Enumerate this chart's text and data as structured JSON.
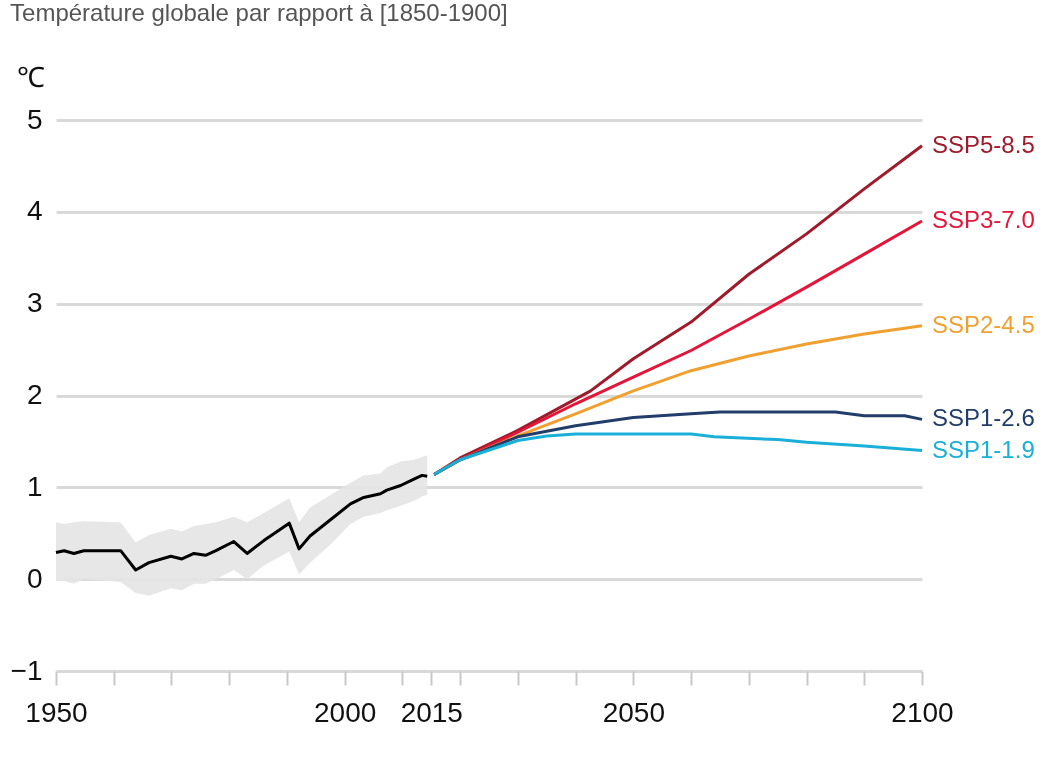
{
  "chart_data": {
    "type": "line",
    "title": "Température globale par rapport à [1850-1900]",
    "ylabel": "℃",
    "xlim": [
      1950,
      2100
    ],
    "ylim": [
      -1,
      5
    ],
    "yticks": [
      -1,
      0,
      1,
      2,
      3,
      4,
      5
    ],
    "xticks": [
      1950,
      {
        "value": 1960,
        "label": null
      },
      {
        "value": 1970,
        "label": null
      },
      {
        "value": 1980,
        "label": null
      },
      {
        "value": 1990,
        "label": null
      },
      2000,
      {
        "value": 2010,
        "label": null
      },
      2015,
      {
        "value": 2020,
        "label": null
      },
      {
        "value": 2030,
        "label": null
      },
      {
        "value": 2040,
        "label": null
      },
      2050,
      {
        "value": 2060,
        "label": null
      },
      {
        "value": 2070,
        "label": null
      },
      {
        "value": 2080,
        "label": null
      },
      {
        "value": 2090,
        "label": null
      },
      2100
    ],
    "grid": "y",
    "legend": false,
    "line_style": "solid",
    "marker": "none",
    "series": [
      {
        "color": "#000000",
        "x": [
          1950,
          1951.4,
          1953.1,
          1954.8,
          1961.2,
          1963.8,
          1966.1,
          1969.9,
          1971.8,
          1973.9,
          1975.9,
          1977.7,
          1980.8,
          1983.1,
          1986,
          1990.4,
          1992.1,
          1994,
          1997.6,
          2001,
          2003.3,
          2006.2,
          2007.3,
          2009.7,
          2012,
          2013.4,
          2014.3
        ],
        "values": [
          0.29,
          0.31,
          0.28,
          0.31,
          0.31,
          0.1,
          0.18,
          0.25,
          0.22,
          0.28,
          0.26,
          0.31,
          0.41,
          0.28,
          0.42,
          0.61,
          0.33,
          0.47,
          0.65,
          0.82,
          0.89,
          0.93,
          0.97,
          1.02,
          1.09,
          1.13,
          1.12
        ],
        "lower": [
          -0.02,
          -0.02,
          -0.05,
          0.0,
          -0.03,
          -0.15,
          -0.18,
          -0.1,
          -0.12,
          -0.05,
          -0.05,
          0.0,
          0.1,
          0.0,
          0.15,
          0.3,
          0.05,
          0.18,
          0.38,
          0.6,
          0.68,
          0.72,
          0.75,
          0.8,
          0.85,
          0.9,
          0.92
        ],
        "upper": [
          0.62,
          0.6,
          0.62,
          0.63,
          0.62,
          0.4,
          0.48,
          0.55,
          0.52,
          0.58,
          0.6,
          0.62,
          0.68,
          0.62,
          0.72,
          0.88,
          0.62,
          0.78,
          0.92,
          1.05,
          1.13,
          1.15,
          1.22,
          1.28,
          1.3,
          1.33,
          1.35
        ]
      },
      {
        "name": "SSP5-8.5",
        "color": "#9e1b2b",
        "x": [
          2015.5,
          2020,
          2030,
          2042.6,
          2050,
          2060,
          2070,
          2080,
          2090,
          2100
        ],
        "values": [
          1.14,
          1.32,
          1.62,
          2.05,
          2.4,
          2.8,
          3.32,
          3.76,
          4.25,
          4.72
        ]
      },
      {
        "name": "SSP3-7.0",
        "color": "#e3163a",
        "x": [
          2015.5,
          2020,
          2030,
          2040,
          2050,
          2060,
          2070,
          2080,
          2090,
          2100
        ],
        "values": [
          1.14,
          1.3,
          1.6,
          1.91,
          2.2,
          2.49,
          2.83,
          3.18,
          3.54,
          3.9
        ]
      },
      {
        "name": "SSP2-4.5",
        "color": "#f0a030",
        "x": [
          2015.5,
          2020,
          2030,
          2040,
          2050,
          2060,
          2070,
          2080,
          2090,
          2100
        ],
        "values": [
          1.14,
          1.3,
          1.56,
          1.8,
          2.05,
          2.27,
          2.43,
          2.56,
          2.67,
          2.76
        ]
      },
      {
        "name": "SSP1-2.6",
        "color": "#233d6b",
        "x": [
          2015.5,
          2020,
          2030,
          2040,
          2050,
          2060,
          2065,
          2085,
          2090,
          2097,
          2100
        ],
        "values": [
          1.14,
          1.3,
          1.55,
          1.67,
          1.76,
          1.8,
          1.82,
          1.82,
          1.78,
          1.78,
          1.74
        ]
      },
      {
        "name": "SSP1-1.9",
        "color": "#1aafd8",
        "x": [
          2015.5,
          2020,
          2030,
          2035,
          2040,
          2060,
          2064,
          2075,
          2080,
          2090,
          2100
        ],
        "values": [
          1.14,
          1.3,
          1.51,
          1.56,
          1.58,
          1.58,
          1.55,
          1.52,
          1.49,
          1.45,
          1.4
        ]
      }
    ]
  }
}
